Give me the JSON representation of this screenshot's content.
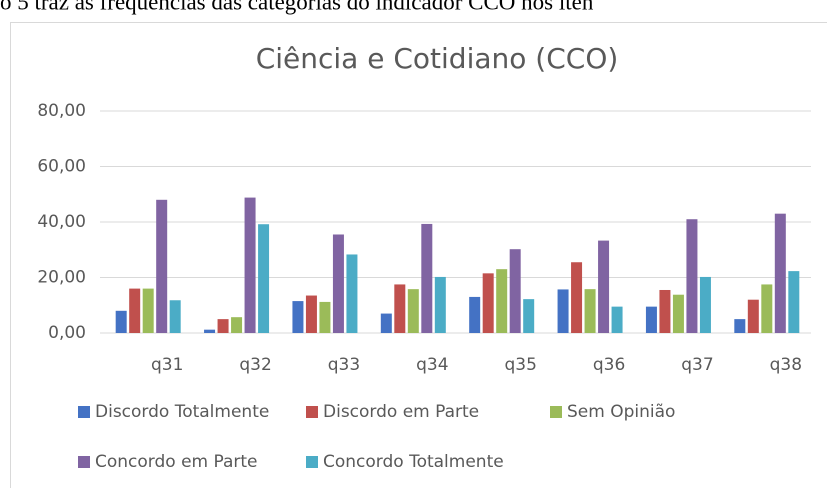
{
  "document_text": "o 5 traz as frequências das categorias do indicador CCO nos iten",
  "chart_data": {
    "type": "bar",
    "title": "Ciência e Cotidiano (CCO)",
    "categories": [
      "q31",
      "q32",
      "q33",
      "q34",
      "q35",
      "q36",
      "q37",
      "q38"
    ],
    "series": [
      {
        "name": "Discordo Totalmente",
        "color": "#4472c4",
        "values": [
          8,
          1.2,
          11.5,
          7,
          13,
          15.7,
          9.5,
          5
        ]
      },
      {
        "name": "Discordo em Parte",
        "color": "#c0504d",
        "values": [
          16,
          5,
          13.5,
          17.5,
          21.5,
          25.5,
          15.5,
          12
        ]
      },
      {
        "name": "Sem Opinião",
        "color": "#9bbb59",
        "values": [
          16,
          5.7,
          11.2,
          15.8,
          23,
          15.8,
          13.8,
          17.5
        ]
      },
      {
        "name": "Concordo em Parte",
        "color": "#8064a2",
        "values": [
          48,
          48.8,
          35.5,
          39.3,
          30.2,
          33.3,
          41,
          43
        ]
      },
      {
        "name": "Concordo Totalmente",
        "color": "#4bacc6",
        "values": [
          11.8,
          39.2,
          28.3,
          20.2,
          12.2,
          9.5,
          20.2,
          22.3
        ]
      }
    ],
    "ylim": [
      0,
      80
    ],
    "yticks": [
      {
        "value": 0,
        "label": "0,00"
      },
      {
        "value": 20,
        "label": "20,00"
      },
      {
        "value": 40,
        "label": "40,00"
      },
      {
        "value": 60,
        "label": "60,00"
      },
      {
        "value": 80,
        "label": "80,00"
      }
    ],
    "grid": true,
    "legend": "bottom"
  }
}
